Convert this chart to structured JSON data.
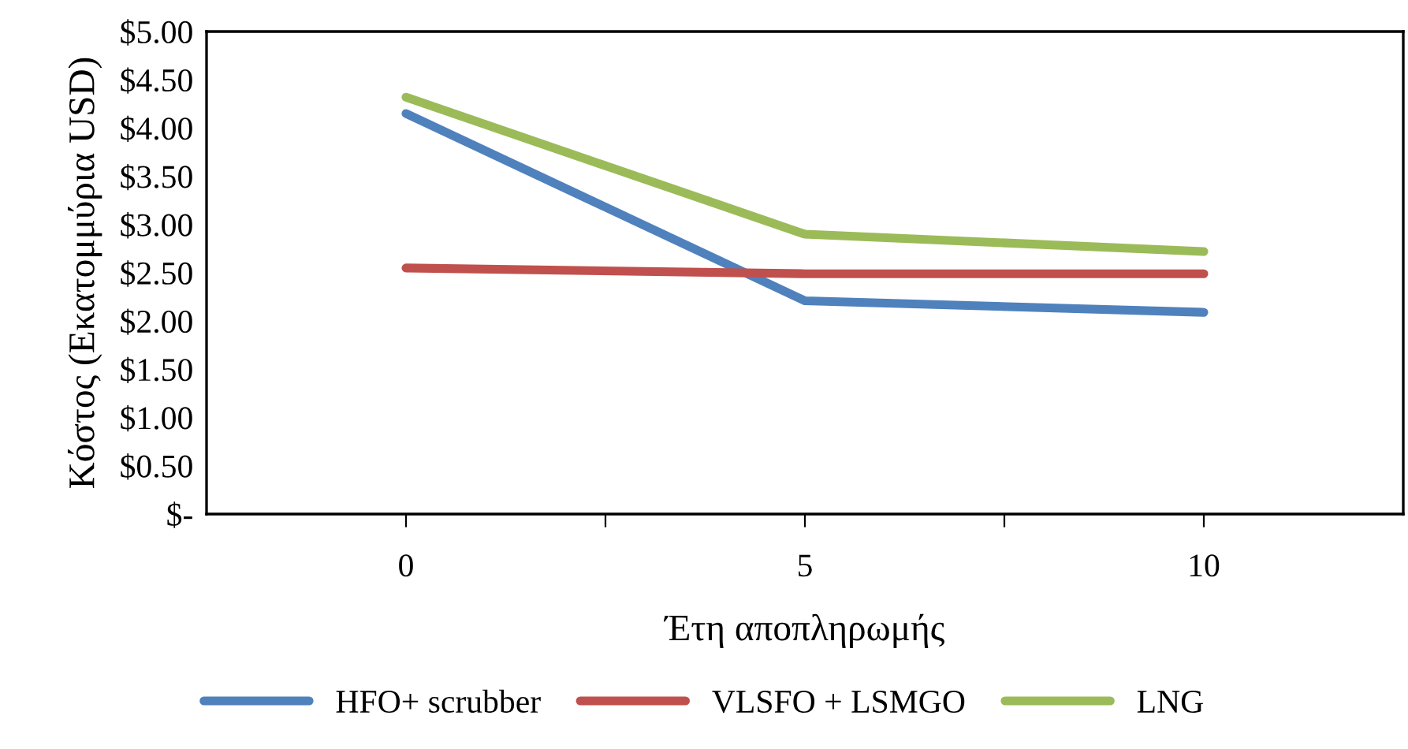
{
  "chart_data": {
    "type": "line",
    "xlabel": "Έτη αποπληρωμής",
    "ylabel": "Κόστος (Εκατομμύρια USD)",
    "x": [
      0,
      5,
      10
    ],
    "series": [
      {
        "name": "HFO+ scrubber",
        "color": "#4f81bd",
        "values": [
          4.15,
          2.21,
          2.09
        ]
      },
      {
        "name": "VLSFO + LSMGO",
        "color": "#c0504d",
        "values": [
          2.55,
          2.49,
          2.49
        ]
      },
      {
        "name": "LNG",
        "color": "#9bbb59",
        "values": [
          4.32,
          2.9,
          2.72
        ]
      }
    ],
    "xlim": [
      -2.5,
      12.5
    ],
    "xticks": [
      0,
      {
        "value": 2.5,
        "label": null
      },
      5,
      {
        "value": 7.5,
        "label": null
      },
      10
    ],
    "ylim": [
      0,
      5
    ],
    "yticks": [
      {
        "value": 0,
        "label": "$-"
      },
      {
        "value": 0.5,
        "label": "$0.50"
      },
      {
        "value": 1,
        "label": "$1.00"
      },
      {
        "value": 1.5,
        "label": "$1.50"
      },
      {
        "value": 2,
        "label": "$2.00"
      },
      {
        "value": 2.5,
        "label": "$2.50"
      },
      {
        "value": 3,
        "label": "$3.00"
      },
      {
        "value": 3.5,
        "label": "$3.50"
      },
      {
        "value": 4,
        "label": "$4.00"
      },
      {
        "value": 4.5,
        "label": "$4.50"
      },
      {
        "value": 5,
        "label": "$5.00"
      }
    ],
    "legend": "bottom",
    "grid": false,
    "marker": "none",
    "line_style": "solid"
  }
}
